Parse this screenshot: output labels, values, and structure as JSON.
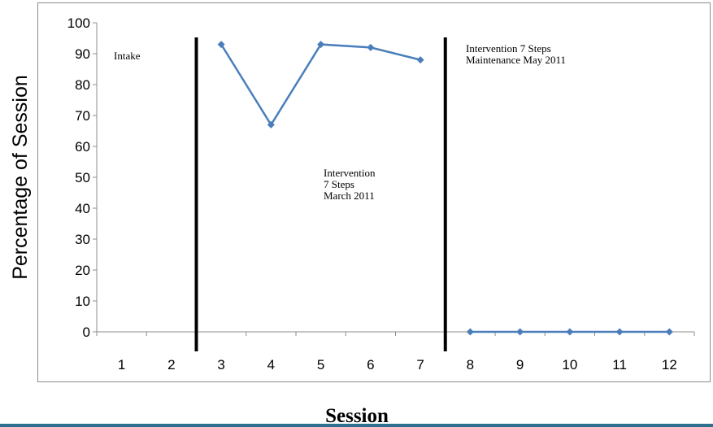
{
  "chart_data": {
    "type": "line",
    "xlabel": "Session",
    "ylabel": "Percentage of Session",
    "categories": [
      "1",
      "2",
      "3",
      "4",
      "5",
      "6",
      "7",
      "8",
      "9",
      "10",
      "11",
      "12"
    ],
    "yticks": [
      "0",
      "10",
      "20",
      "30",
      "40",
      "50",
      "60",
      "70",
      "80",
      "90",
      "100"
    ],
    "ylim": [
      0,
      100
    ],
    "grid": false,
    "series": [
      {
        "segment": "intervention",
        "x": [
          3,
          4,
          5,
          6,
          7
        ],
        "y": [
          93,
          67,
          93,
          92,
          88
        ]
      },
      {
        "segment": "maintenance",
        "x": [
          8,
          9,
          10,
          11,
          12
        ],
        "y": [
          0,
          0,
          0,
          0,
          0
        ]
      }
    ],
    "phase_lines_after": [
      2,
      7
    ],
    "annotations": [
      {
        "lines": [
          "Intake"
        ]
      },
      {
        "lines": [
          "Intervention",
          "7 Steps",
          "March 2011"
        ]
      },
      {
        "lines": [
          "Intervention 7 Steps",
          "Maintenance  May 2011"
        ]
      }
    ],
    "line_color": "#4a7ebb",
    "marker_color": "#4a7ebb",
    "phase_line_color": "#000000"
  }
}
